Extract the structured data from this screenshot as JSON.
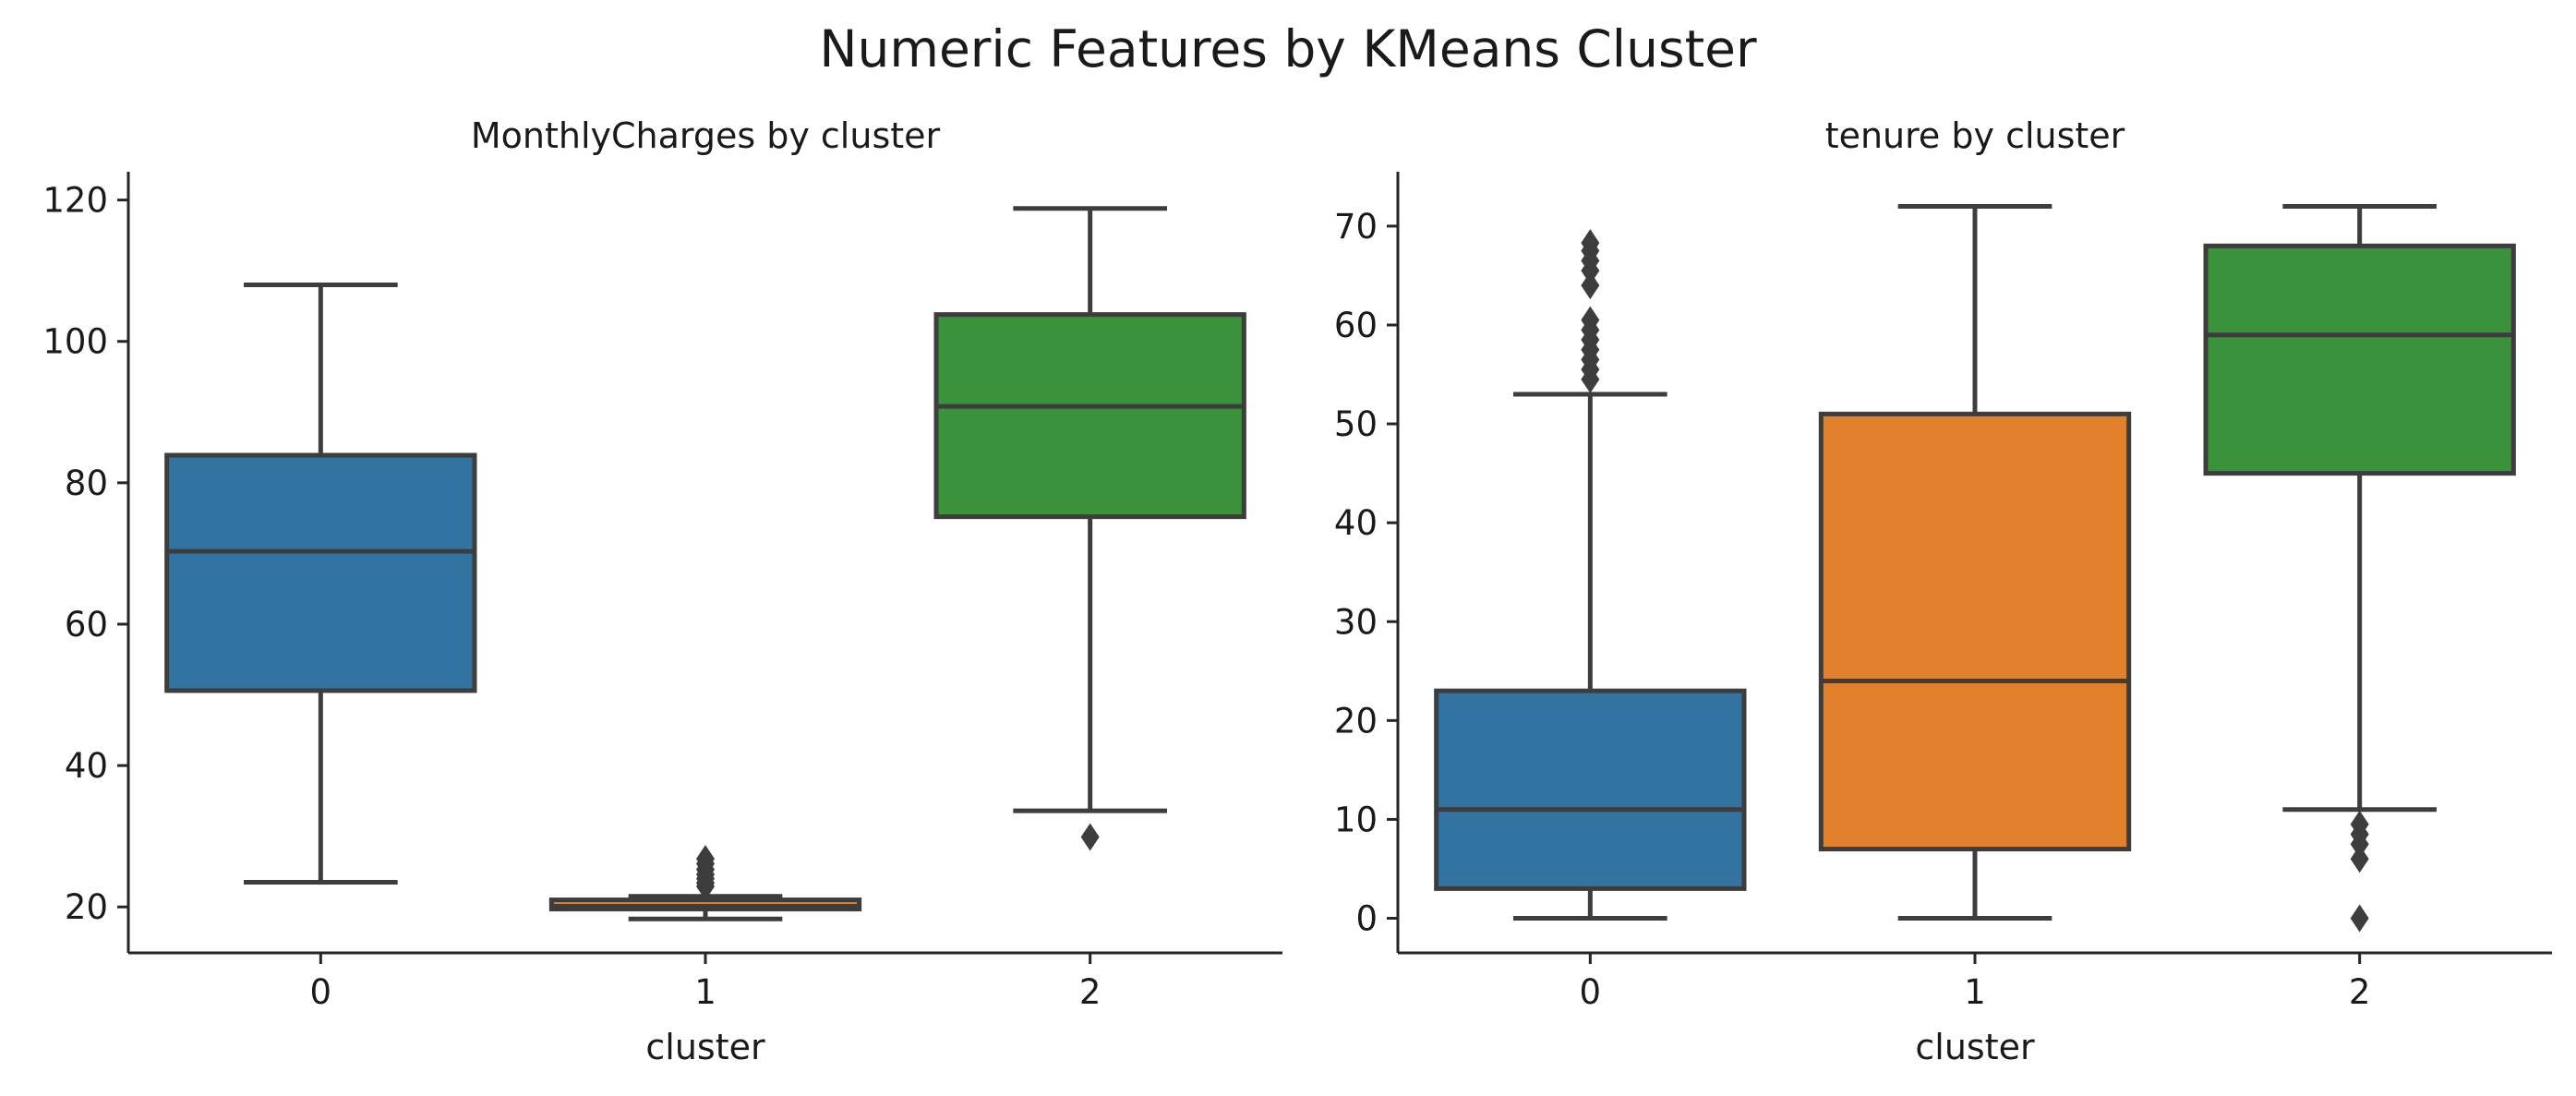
{
  "title": "Numeric Features by KMeans Cluster",
  "chart_data": [
    {
      "type": "box",
      "title": "MonthlyCharges by cluster",
      "xlabel": "cluster",
      "ylabel": "",
      "categories": [
        "0",
        "1",
        "2"
      ],
      "ylim": [
        13.5,
        124
      ],
      "yticks": [
        20,
        40,
        60,
        80,
        100,
        120
      ],
      "colors": [
        "#3274a1",
        "#e1812c",
        "#3a923a"
      ],
      "grid": false,
      "legend": "none",
      "boxes": [
        {
          "category": "0",
          "whisker_low": 23.5,
          "q1": 50.6,
          "median": 70.3,
          "q3": 83.9,
          "whisker_high": 108.0,
          "outliers": []
        },
        {
          "category": "1",
          "whisker_low": 18.3,
          "q1": 19.7,
          "median": 20.1,
          "q3": 21.0,
          "whisker_high": 21.5,
          "outliers": [
            22.9,
            23.4,
            24.0,
            24.6,
            25.3,
            26.1,
            26.8
          ]
        },
        {
          "category": "2",
          "whisker_low": 33.6,
          "q1": 75.2,
          "median": 90.8,
          "q3": 103.8,
          "whisker_high": 118.8,
          "outliers": [
            29.9
          ]
        }
      ]
    },
    {
      "type": "box",
      "title": "tenure by cluster",
      "xlabel": "cluster",
      "ylabel": "",
      "categories": [
        "0",
        "1",
        "2"
      ],
      "ylim": [
        -3.5,
        75.5
      ],
      "yticks": [
        0,
        10,
        20,
        30,
        40,
        50,
        60,
        70
      ],
      "colors": [
        "#3274a1",
        "#e1812c",
        "#3a923a"
      ],
      "grid": false,
      "legend": "none",
      "boxes": [
        {
          "category": "0",
          "whisker_low": 0,
          "q1": 3,
          "median": 11,
          "q3": 23,
          "whisker_high": 53,
          "outliers": [
            54.5,
            55.5,
            56.5,
            57.5,
            58.5,
            59.5,
            60.5,
            64,
            65.5,
            66.5,
            67.5,
            68.3
          ]
        },
        {
          "category": "1",
          "whisker_low": 0,
          "q1": 7,
          "median": 24,
          "q3": 51,
          "whisker_high": 72,
          "outliers": []
        },
        {
          "category": "2",
          "whisker_low": 11,
          "q1": 45,
          "median": 59,
          "q3": 68,
          "whisker_high": 72,
          "outliers": [
            9.5,
            8.5,
            7.5,
            6,
            0
          ]
        }
      ]
    }
  ]
}
